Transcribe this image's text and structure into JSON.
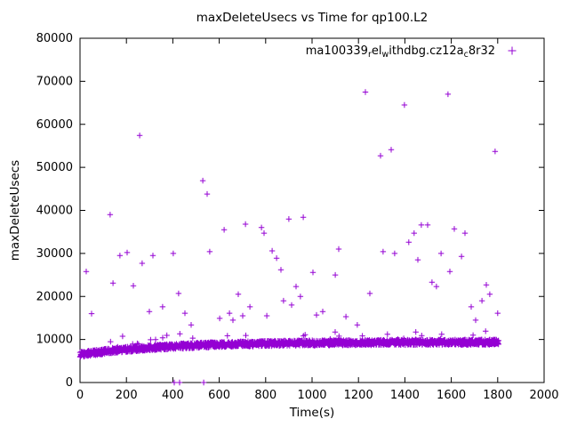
{
  "chart_data": {
    "type": "scatter",
    "title": "maxDeleteUsecs vs Time for qp100.L2",
    "xlabel": "Time(s)",
    "ylabel": "maxDeleteUsecs",
    "xlim": [
      0,
      2000
    ],
    "ylim": [
      0,
      80000
    ],
    "xticks": [
      0,
      200,
      400,
      600,
      800,
      1000,
      1200,
      1400,
      1600,
      1800,
      2000
    ],
    "yticks": [
      0,
      10000,
      20000,
      30000,
      40000,
      50000,
      60000,
      70000,
      80000
    ],
    "grid": false,
    "marker": {
      "shape": "plus",
      "color": "#9400d3",
      "size": 7
    },
    "legend": {
      "position": "top-right-inside",
      "label_plain": "ma100339_rel_withdbg.cz12a_c8r32",
      "segments": [
        {
          "text": "ma100339",
          "subscript": false
        },
        {
          "text": "r",
          "subscript": true
        },
        {
          "text": "el",
          "subscript": false
        },
        {
          "text": "w",
          "subscript": true
        },
        {
          "text": "ithdbg.cz12a",
          "subscript": false
        },
        {
          "text": "c",
          "subscript": true
        },
        {
          "text": "8r32",
          "subscript": false
        }
      ]
    },
    "series": [
      {
        "name": "ma100339_rel_withdbg.cz12a_c8r32",
        "outlier_points": [
          [
            27,
            25800
          ],
          [
            50,
            16000
          ],
          [
            130,
            39000
          ],
          [
            142,
            23100
          ],
          [
            172,
            29500
          ],
          [
            203,
            30200
          ],
          [
            230,
            22500
          ],
          [
            257,
            57400
          ],
          [
            268,
            27700
          ],
          [
            299,
            16500
          ],
          [
            314,
            29500
          ],
          [
            356,
            17600
          ],
          [
            402,
            30000
          ],
          [
            425,
            20700
          ],
          [
            452,
            16100
          ],
          [
            479,
            13400
          ],
          [
            529,
            46900
          ],
          [
            548,
            43800
          ],
          [
            559,
            30400
          ],
          [
            602,
            14900
          ],
          [
            621,
            35500
          ],
          [
            644,
            16100
          ],
          [
            659,
            14500
          ],
          [
            682,
            20500
          ],
          [
            701,
            15500
          ],
          [
            713,
            36800
          ],
          [
            732,
            17600
          ],
          [
            782,
            36000
          ],
          [
            793,
            34700
          ],
          [
            805,
            15500
          ],
          [
            828,
            30600
          ],
          [
            847,
            28900
          ],
          [
            866,
            26200
          ],
          [
            877,
            19000
          ],
          [
            900,
            38000
          ],
          [
            912,
            18000
          ],
          [
            931,
            22300
          ],
          [
            950,
            20000
          ],
          [
            962,
            38400
          ],
          [
            1004,
            25600
          ],
          [
            1019,
            15700
          ],
          [
            1046,
            16500
          ],
          [
            1100,
            25000
          ],
          [
            1115,
            31000
          ],
          [
            1146,
            15300
          ],
          [
            1195,
            13400
          ],
          [
            1230,
            67500
          ],
          [
            1249,
            20700
          ],
          [
            1295,
            52700
          ],
          [
            1306,
            30400
          ],
          [
            1341,
            54100
          ],
          [
            1356,
            30000
          ],
          [
            1398,
            64500
          ],
          [
            1417,
            32600
          ],
          [
            1440,
            34700
          ],
          [
            1456,
            28500
          ],
          [
            1471,
            36600
          ],
          [
            1498,
            36600
          ],
          [
            1517,
            23300
          ],
          [
            1536,
            22300
          ],
          [
            1556,
            30000
          ],
          [
            1586,
            67000
          ],
          [
            1594,
            25800
          ],
          [
            1613,
            35700
          ],
          [
            1644,
            29300
          ],
          [
            1659,
            34700
          ],
          [
            1686,
            17600
          ],
          [
            1705,
            14500
          ],
          [
            1732,
            19000
          ],
          [
            1751,
            22700
          ],
          [
            1766,
            20500
          ],
          [
            1789,
            53700
          ],
          [
            1800,
            16100
          ]
        ],
        "zero_points": [
          [
            406,
            0
          ],
          [
            429,
            0
          ],
          [
            533,
            0
          ]
        ],
        "dense_band": {
          "description": "dense noisy band of samples rising from ~6500 usecs at t=0 to ~9400 usecs by t=1800",
          "x_start": 0,
          "x_end": 1805,
          "step": 1.8,
          "points_per_x": 2,
          "y_base": 6500,
          "y_rise": 2900,
          "tau": 380,
          "noise": 620,
          "spike_prob": 0.03,
          "spike_max": 2600,
          "seed": 1234
        }
      }
    ]
  }
}
